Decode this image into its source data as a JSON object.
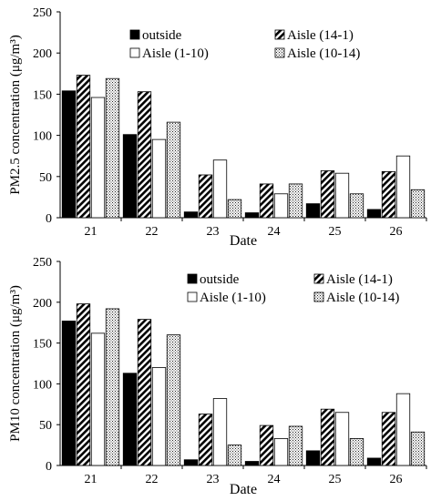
{
  "chart_data": [
    {
      "type": "bar",
      "ylabel": "PM2.5 concentration (μg/m³)",
      "xlabel": "Date",
      "ylim": [
        0,
        250
      ],
      "yticks": [
        "0",
        "50",
        "100",
        "150",
        "200",
        "250"
      ],
      "categories": [
        "21",
        "22",
        "23",
        "24",
        "25",
        "26"
      ],
      "legend_placement": "top-right",
      "series": [
        {
          "name": "outside",
          "pattern": "solid",
          "values": [
            154,
            101,
            7,
            6,
            17,
            10
          ]
        },
        {
          "name": "Aisle (14-1)",
          "pattern": "hatch",
          "values": [
            173,
            153,
            52,
            41,
            57,
            56
          ]
        },
        {
          "name": "Aisle (1-10)",
          "pattern": "empty",
          "values": [
            146,
            95,
            70,
            29,
            54,
            75
          ]
        },
        {
          "name": "Aisle (10-14)",
          "pattern": "dots",
          "values": [
            169,
            116,
            22,
            41,
            29,
            34
          ]
        }
      ]
    },
    {
      "type": "bar",
      "ylabel": "PM10 concentration (μg/m³)",
      "xlabel": "Date",
      "ylim": [
        0,
        250
      ],
      "yticks": [
        "0",
        "50",
        "100",
        "150",
        "200",
        "250"
      ],
      "categories": [
        "21",
        "22",
        "23",
        "24",
        "25",
        "26"
      ],
      "legend_placement": "top-right",
      "series": [
        {
          "name": "outside",
          "pattern": "solid",
          "values": [
            177,
            113,
            7,
            5,
            18,
            9
          ]
        },
        {
          "name": "Aisle (14-1)",
          "pattern": "hatch",
          "values": [
            198,
            179,
            63,
            49,
            69,
            65
          ]
        },
        {
          "name": "Aisle (1-10)",
          "pattern": "empty",
          "values": [
            162,
            120,
            82,
            33,
            65,
            88
          ]
        },
        {
          "name": "Aisle (10-14)",
          "pattern": "dots",
          "values": [
            192,
            160,
            25,
            48,
            33,
            41
          ]
        }
      ]
    }
  ]
}
